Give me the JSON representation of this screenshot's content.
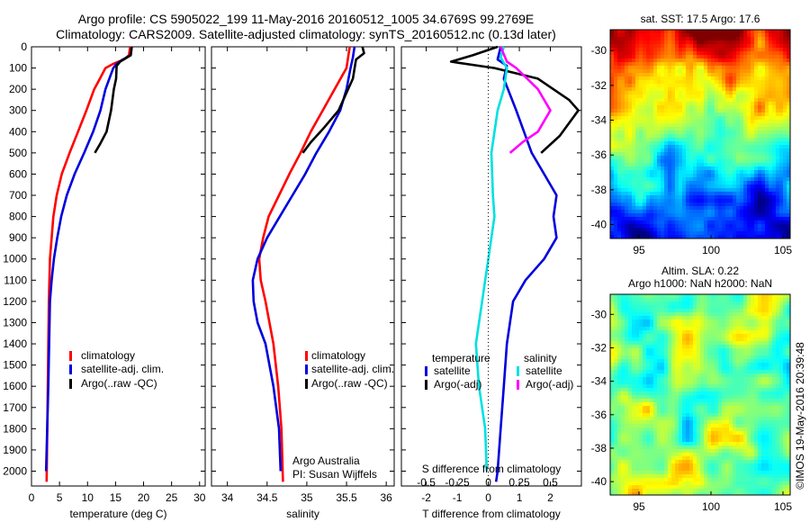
{
  "header": {
    "title_line1": "Argo profile: CS 5905022_199 11-May-2016 20160512_1005 34.6769S 99.2769E",
    "title_line2": "Climatology: CARS2009. Satellite-adjusted climatology: synTS_20160512.nc (0.13d later)"
  },
  "footer": {
    "credit_line1": "Argo Australia",
    "credit_line2": "PI: Susan Wijffels",
    "stamp": "©IMOS 19-May-2016 20:39:48"
  },
  "colors": {
    "climatology": "#ff0000",
    "satellite": "#0000dd",
    "argo": "#000000",
    "salinity_satellite": "#00e0e0",
    "salinity_argo": "#ff00ff"
  },
  "chart_data": [
    {
      "id": "temperature",
      "type": "line",
      "xlabel": "temperature (deg C)",
      "ylabel": "",
      "xlim": [
        0,
        31
      ],
      "ylim": [
        2070,
        0
      ],
      "xticks": [
        0,
        5,
        10,
        15,
        20,
        25,
        30
      ],
      "yticks": [
        0,
        100,
        200,
        300,
        400,
        500,
        600,
        700,
        800,
        900,
        1000,
        1100,
        1200,
        1300,
        1400,
        1500,
        1600,
        1700,
        1800,
        1900,
        2000
      ],
      "legend": [
        "climatology",
        "satellite-adj. clim.",
        "Argo(..raw -QC)"
      ],
      "series": [
        {
          "name": "climatology",
          "color": "#ff0000",
          "x": [
            17.6,
            17.4,
            16.5,
            14.6,
            13.2,
            12.2,
            11.2,
            9.8,
            8.3,
            6.8,
            5.4,
            4.5,
            3.9,
            3.6,
            3.3,
            3.1,
            2.9,
            2.7
          ],
          "y": [
            0,
            40,
            60,
            80,
            100,
            150,
            200,
            300,
            400,
            500,
            600,
            700,
            800,
            900,
            1000,
            1200,
            1600,
            2050
          ]
        },
        {
          "name": "satellite-adj. clim.",
          "color": "#0000dd",
          "x": [
            17.9,
            17.7,
            16.3,
            15.2,
            14.6,
            13.9,
            13.2,
            12.3,
            11.0,
            9.4,
            7.7,
            6.3,
            5.3,
            4.6,
            4.0,
            3.6,
            3.3,
            3.0,
            2.6
          ],
          "y": [
            0,
            40,
            60,
            80,
            100,
            150,
            200,
            300,
            400,
            500,
            600,
            700,
            800,
            900,
            1000,
            1100,
            1200,
            1600,
            2000
          ]
        },
        {
          "name": "Argo(..raw -QC)",
          "color": "#000000",
          "x": [
            17.9,
            17.7,
            15.8,
            15.2,
            15.1,
            14.7,
            14.2,
            13.4,
            12.2,
            11.3
          ],
          "y": [
            0,
            40,
            70,
            90,
            150,
            200,
            300,
            400,
            460,
            500
          ]
        }
      ]
    },
    {
      "id": "salinity",
      "type": "line",
      "xlabel": "salinity",
      "ylabel": "",
      "xlim": [
        33.8,
        36.1
      ],
      "ylim": [
        2070,
        0
      ],
      "xticks": [
        34,
        34.5,
        35,
        35.5,
        36
      ],
      "legend": [
        "climatology",
        "satellite-adj. clim.",
        "Argo(..raw -QC)"
      ],
      "series": [
        {
          "name": "climatology",
          "color": "#ff0000",
          "x": [
            35.54,
            35.52,
            35.5,
            35.35,
            35.2,
            35.05,
            34.92,
            34.78,
            34.65,
            34.52,
            34.45,
            34.4,
            34.42,
            34.48,
            34.53,
            34.58,
            34.64,
            34.68,
            34.7
          ],
          "y": [
            0,
            50,
            100,
            200,
            300,
            400,
            500,
            600,
            700,
            800,
            900,
            1000,
            1100,
            1200,
            1300,
            1400,
            1600,
            1800,
            2050
          ]
        },
        {
          "name": "satellite-adj. clim.",
          "color": "#0000dd",
          "x": [
            35.6,
            35.58,
            35.55,
            35.5,
            35.42,
            35.28,
            35.12,
            34.98,
            34.82,
            34.66,
            34.5,
            34.38,
            34.32,
            34.33,
            34.38,
            34.48,
            34.58,
            34.65,
            34.67
          ],
          "y": [
            0,
            50,
            100,
            200,
            300,
            400,
            500,
            600,
            700,
            800,
            900,
            1000,
            1100,
            1200,
            1300,
            1400,
            1600,
            1800,
            2000
          ]
        },
        {
          "name": "Argo(..raw -QC)",
          "color": "#000000",
          "x": [
            35.7,
            35.72,
            35.62,
            35.61,
            35.58,
            35.52,
            35.4,
            35.22,
            35.05,
            34.95
          ],
          "y": [
            0,
            30,
            60,
            80,
            150,
            200,
            300,
            380,
            450,
            500
          ]
        }
      ]
    },
    {
      "id": "difference",
      "type": "line",
      "xlabel": "T difference from climatology",
      "x2label": "S difference from climatology",
      "xlim": [
        -2.8,
        3.0
      ],
      "ylim": [
        2070,
        0
      ],
      "xticks": [
        -2,
        -1,
        0,
        1,
        2
      ],
      "x2ticks": [
        -0.5,
        -0.25,
        0,
        0.25,
        0.5
      ],
      "legend_headers": [
        "temperature",
        "salinity"
      ],
      "legend": [
        "satellite",
        "Argo(-adj)",
        "satellite",
        "Argo(-adj)"
      ],
      "series": [
        {
          "name": "satellite",
          "group": "temperature",
          "color": "#0000dd",
          "x": [
            0.4,
            0.3,
            0.6,
            0.5,
            0.9,
            1.4,
            1.8,
            2.2,
            2.1,
            2.2,
            1.8,
            1.2,
            0.8,
            0.6,
            0.5,
            0.4,
            0.35,
            0.3,
            0.25
          ],
          "y": [
            0,
            60,
            90,
            150,
            300,
            500,
            600,
            700,
            800,
            900,
            1000,
            1100,
            1200,
            1400,
            1600,
            1800,
            1900,
            2000,
            2050
          ]
        },
        {
          "name": "Argo(-adj)",
          "group": "temperature",
          "color": "#000000",
          "x": [
            0.3,
            -0.5,
            -1.2,
            0.2,
            1.6,
            2.6,
            2.9,
            2.3,
            1.7
          ],
          "y": [
            0,
            40,
            70,
            100,
            150,
            250,
            300,
            420,
            500
          ]
        },
        {
          "name": "satellite",
          "group": "salinity",
          "color": "#00e0e0",
          "x": [
            0.5,
            0.4,
            0.6,
            0.5,
            0.3,
            0.1,
            0.15,
            0.2,
            0.0,
            -0.1,
            -0.2,
            -0.3,
            -0.4,
            -0.3,
            -0.1,
            -0.05
          ],
          "y": [
            0,
            50,
            100,
            200,
            300,
            500,
            700,
            800,
            1000,
            1100,
            1200,
            1300,
            1400,
            1600,
            1800,
            2000
          ]
        },
        {
          "name": "Argo(-adj)",
          "group": "salinity",
          "color": "#ff00ff",
          "x": [
            0.4,
            0.6,
            0.9,
            1.6,
            2.0,
            1.6,
            1.1,
            0.7
          ],
          "y": [
            0,
            70,
            100,
            200,
            300,
            400,
            450,
            500
          ]
        }
      ]
    },
    {
      "id": "sst_map",
      "type": "heatmap",
      "title": "sat. SST: 17.5  Argo: 17.6",
      "xlim": [
        93,
        105.5
      ],
      "ylim": [
        -40.8,
        -28.8
      ],
      "xticks": [
        95,
        100,
        105
      ],
      "yticks": [
        -30,
        -32,
        -34,
        -36,
        -38,
        -40
      ]
    },
    {
      "id": "sla_map",
      "type": "heatmap",
      "title_line1": "Altim. SLA: 0.22",
      "title_line2": "Argo h1000: NaN h2000: NaN",
      "xlim": [
        93,
        105.5
      ],
      "ylim": [
        -40.8,
        -28.8
      ],
      "xticks": [
        95,
        100,
        105
      ],
      "yticks": [
        -30,
        -32,
        -34,
        -36,
        -38,
        -40
      ]
    }
  ]
}
